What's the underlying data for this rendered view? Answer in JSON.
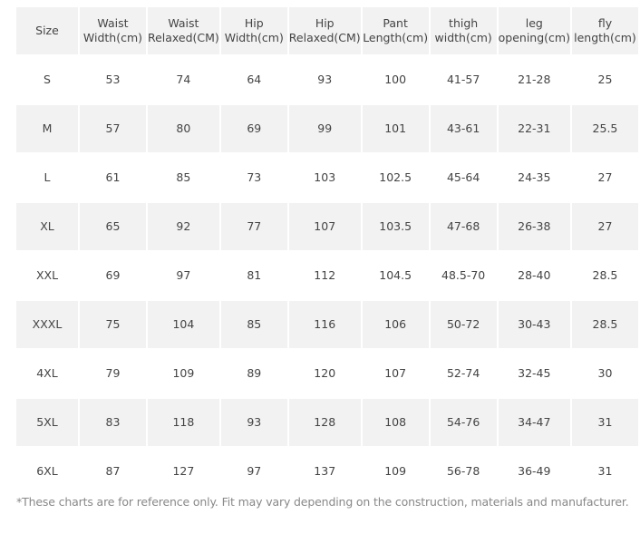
{
  "table": {
    "header": [
      [
        "Size"
      ],
      [
        "Waist",
        "Width(cm)"
      ],
      [
        "Waist",
        "Relaxed(CM)"
      ],
      [
        "Hip",
        "Width(cm)"
      ],
      [
        "Hip",
        "Relaxed(CM)"
      ],
      [
        "Pant",
        "Length(cm)"
      ],
      [
        "thigh",
        "width(cm)"
      ],
      [
        "leg",
        "opening(cm)"
      ],
      [
        "fly",
        "length(cm)"
      ]
    ],
    "rows": [
      [
        "S",
        "53",
        "74",
        "64",
        "93",
        "100",
        "41-57",
        "21-28",
        "25"
      ],
      [
        "M",
        "57",
        "80",
        "69",
        "99",
        "101",
        "43-61",
        "22-31",
        "25.5"
      ],
      [
        "L",
        "61",
        "85",
        "73",
        "103",
        "102.5",
        "45-64",
        "24-35",
        "27"
      ],
      [
        "XL",
        "65",
        "92",
        "77",
        "107",
        "103.5",
        "47-68",
        "26-38",
        "27"
      ],
      [
        "XXL",
        "69",
        "97",
        "81",
        "112",
        "104.5",
        "48.5-70",
        "28-40",
        "28.5"
      ],
      [
        "XXXL",
        "75",
        "104",
        "85",
        "116",
        "106",
        "50-72",
        "30-43",
        "28.5"
      ],
      [
        "4XL",
        "79",
        "109",
        "89",
        "120",
        "107",
        "52-74",
        "32-45",
        "30"
      ],
      [
        "5XL",
        "83",
        "118",
        "93",
        "128",
        "108",
        "54-76",
        "34-47",
        "31"
      ],
      [
        "6XL",
        "87",
        "127",
        "97",
        "137",
        "109",
        "56-78",
        "36-49",
        "31"
      ]
    ]
  },
  "footnote": "*These charts are for reference only. Fit may vary depending on the construction, materials and manufacturer."
}
